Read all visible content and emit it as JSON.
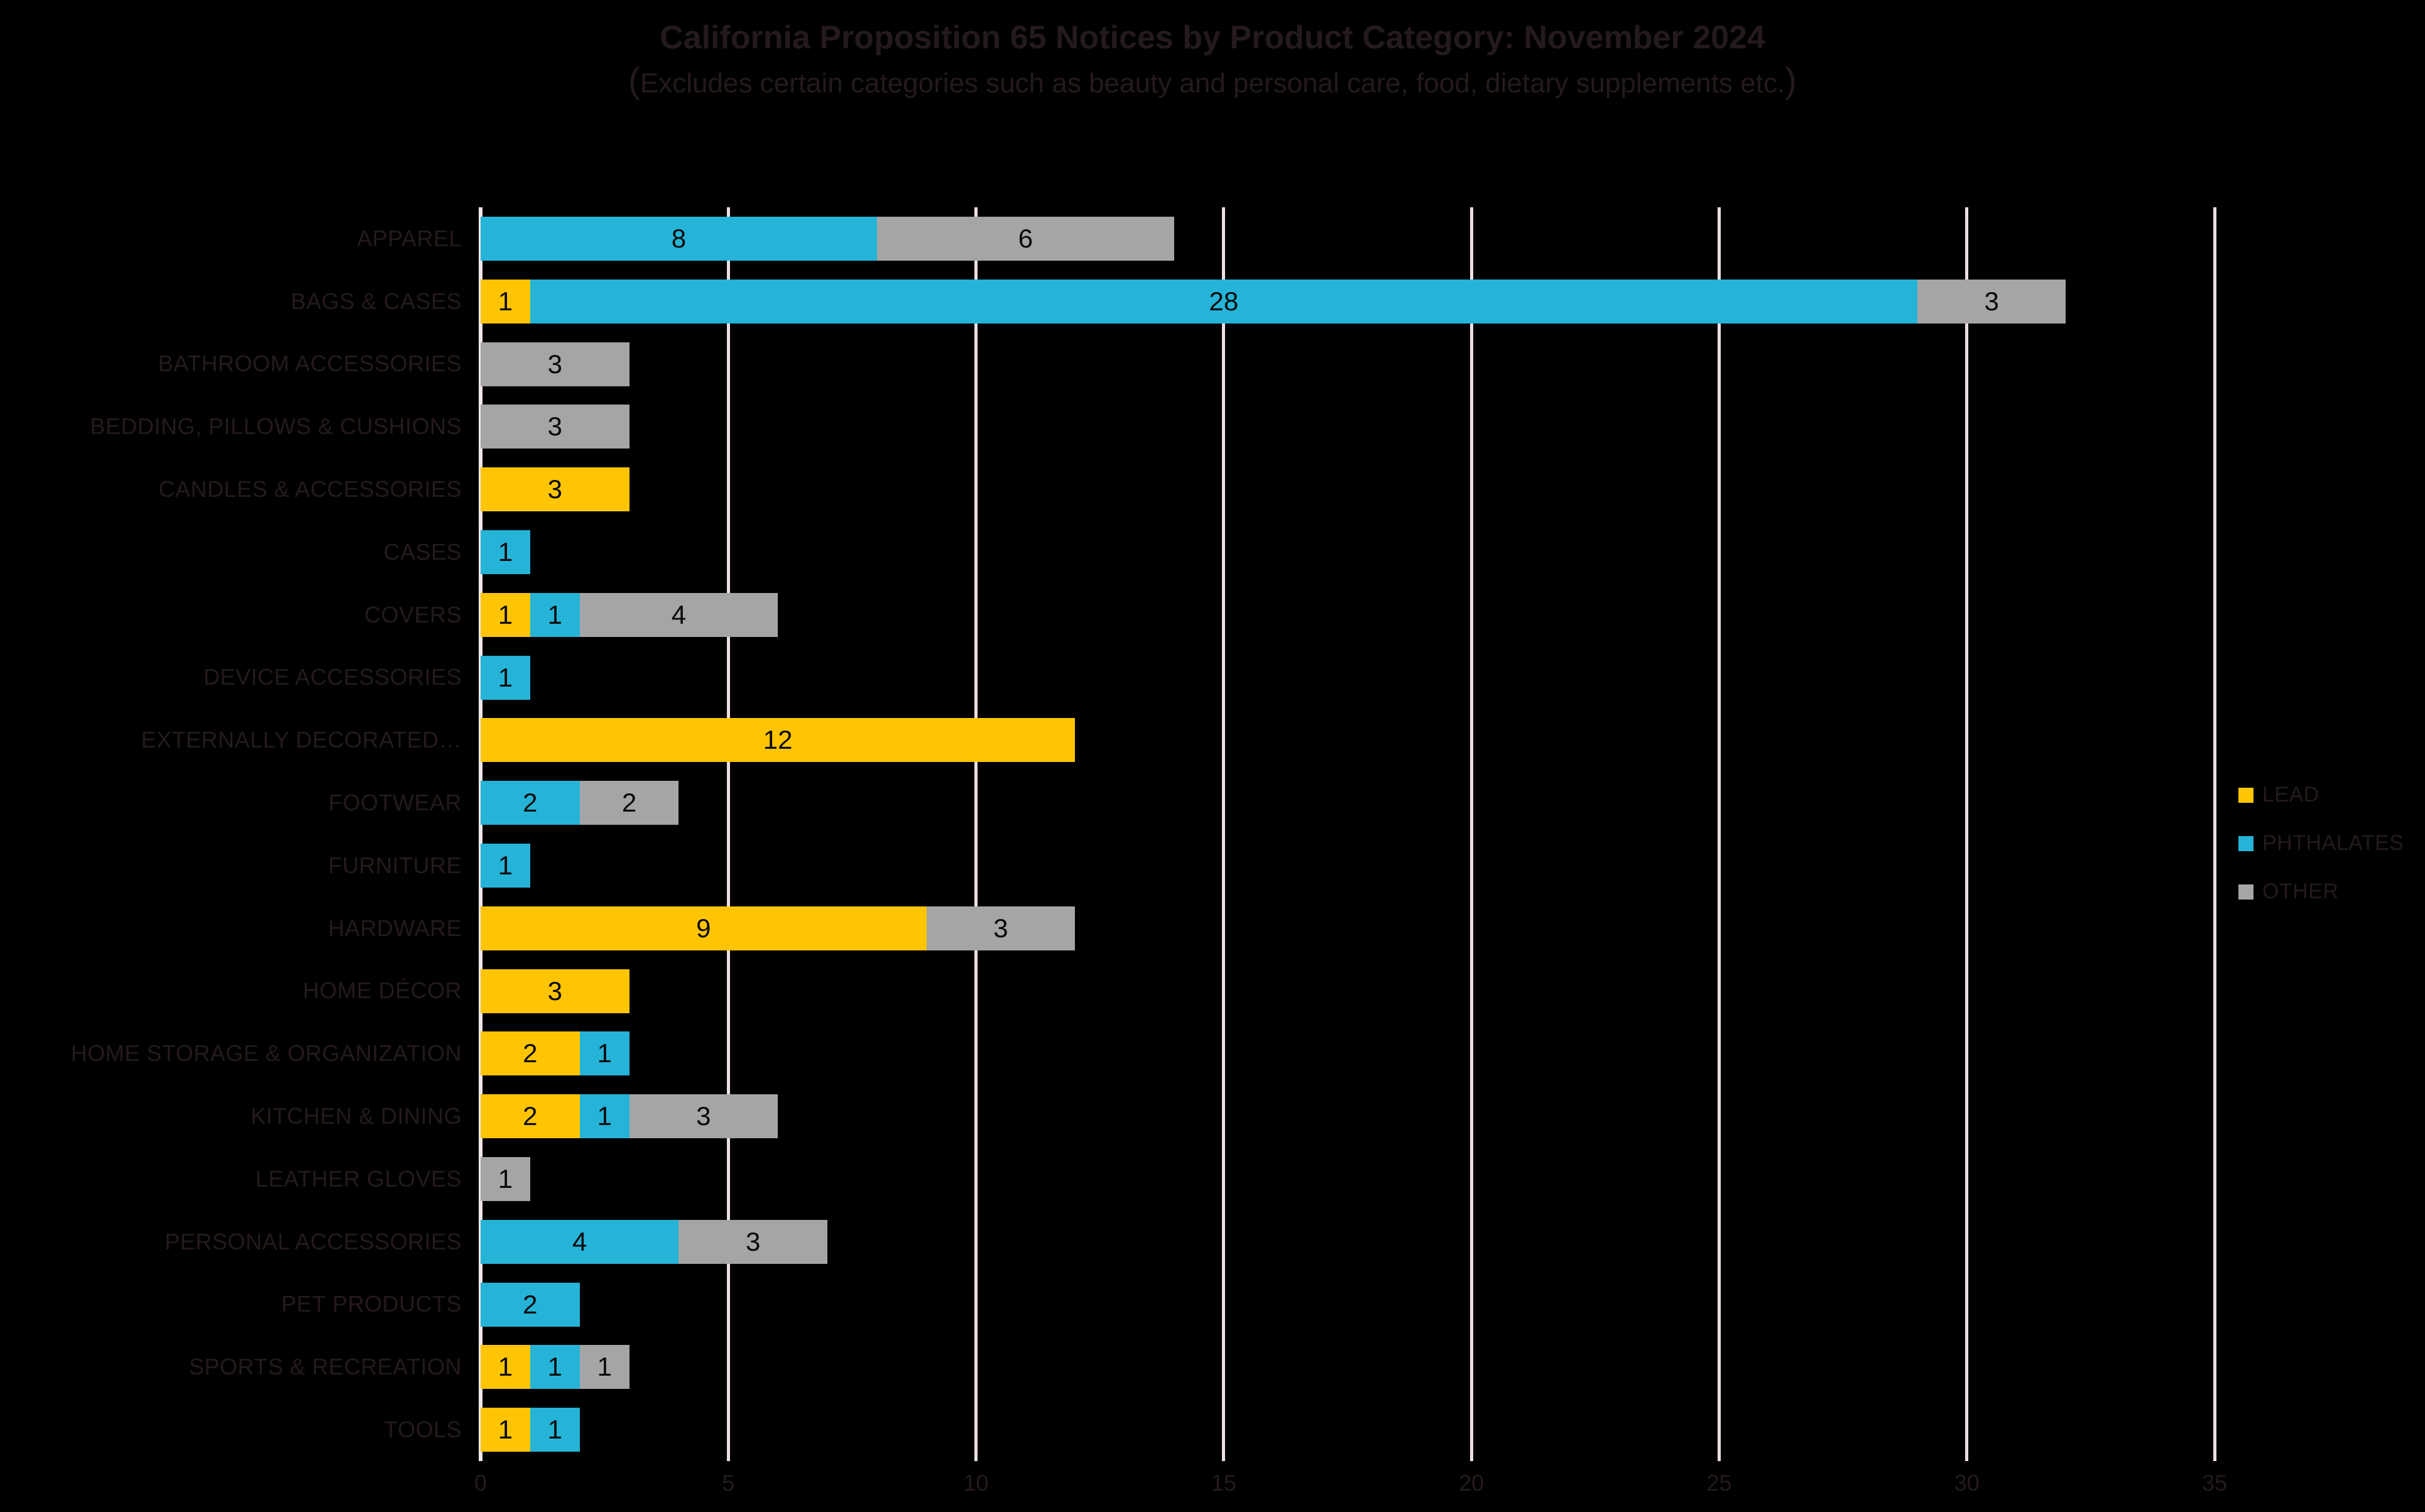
{
  "title": "California Proposition 65 Notices by Product Category: November 2024",
  "subtitle": "(Excludes certain categories such as beauty and personal care, food, dietary supplements etc.)",
  "colors": {
    "background": "#000000",
    "lead": "#FFC503",
    "phthalates": "#25B4D8",
    "other": "#A5A5A5",
    "gridline": "#EBDFE2",
    "axis_line": "#F0E6E9",
    "dark_text": "#241A1C",
    "value_label": "#0B0A0A"
  },
  "legend": {
    "position": "right",
    "items": [
      {
        "label": "LEAD",
        "color": "#FFC503"
      },
      {
        "label": "PHTHALATES",
        "color": "#25B4D8"
      },
      {
        "label": "OTHER",
        "color": "#A5A5A5"
      }
    ]
  },
  "x_axis": {
    "min": 0,
    "max": 35,
    "tick_step": 5,
    "tick_labels": [
      "0",
      "5",
      "10",
      "15",
      "20",
      "25",
      "30",
      "35"
    ]
  },
  "chart_data": {
    "type": "bar",
    "orientation": "horizontal",
    "stacked": true,
    "grid": true,
    "data_labels": true,
    "legend_position": "right",
    "title": "California Proposition 65 Notices by Product Category: November 2024",
    "subtitle": "(Excludes certain categories such as beauty and personal care, food, dietary supplements etc.)",
    "xlabel": "",
    "ylabel": "",
    "xlim": [
      0,
      35
    ],
    "xticks": [
      0,
      5,
      10,
      15,
      20,
      25,
      30,
      35
    ],
    "categories": [
      "APPAREL",
      "BAGS & CASES",
      "BATHROOM ACCESSORIES",
      "BEDDING, PILLOWS & CUSHIONS",
      "CANDLES & ACCESSORIES",
      "CASES",
      "COVERS",
      "DEVICE ACCESSORIES",
      "EXTERNALLY DECORATED…",
      "FOOTWEAR",
      "FURNITURE",
      "HARDWARE",
      "HOME DÉCOR",
      "HOME STORAGE & ORGANIZATION",
      "KITCHEN & DINING",
      "LEATHER GLOVES",
      "PERSONAL ACCESSORIES",
      "PET PRODUCTS",
      "SPORTS & RECREATION",
      "TOOLS"
    ],
    "series": [
      {
        "name": "LEAD",
        "color": "#FFC503",
        "values": [
          0,
          1,
          0,
          0,
          3,
          0,
          1,
          0,
          12,
          0,
          0,
          9,
          3,
          2,
          2,
          0,
          0,
          0,
          1,
          1
        ]
      },
      {
        "name": "PHTHALATES",
        "color": "#25B4D8",
        "values": [
          8,
          28,
          0,
          0,
          0,
          1,
          1,
          1,
          0,
          2,
          1,
          0,
          0,
          1,
          1,
          0,
          4,
          2,
          1,
          1
        ]
      },
      {
        "name": "OTHER",
        "color": "#A5A5A5",
        "values": [
          6,
          3,
          3,
          3,
          0,
          0,
          4,
          0,
          0,
          2,
          0,
          3,
          0,
          0,
          3,
          1,
          3,
          0,
          1,
          0
        ]
      }
    ]
  }
}
